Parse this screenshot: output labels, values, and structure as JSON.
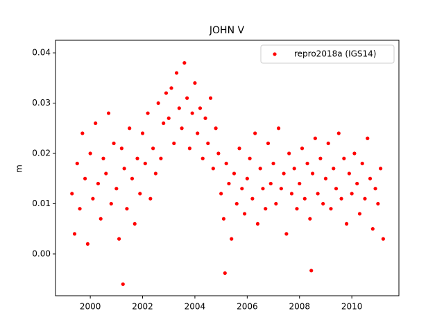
{
  "chart_data": {
    "type": "scatter",
    "title": "JOHN V",
    "ylabel": "m",
    "series": [
      {
        "name": "repro2018a (IGS14)",
        "color": "#ff0000",
        "x": [
          1999.3,
          1999.4,
          1999.5,
          1999.6,
          1999.7,
          1999.8,
          1999.9,
          2000.0,
          2000.1,
          2000.2,
          2000.3,
          2000.4,
          2000.5,
          2000.6,
          2000.7,
          2000.8,
          2000.9,
          2001.0,
          2001.1,
          2001.2,
          2001.3,
          2001.4,
          2001.5,
          2001.6,
          2001.7,
          2001.8,
          2001.9,
          2002.0,
          2002.1,
          2002.2,
          2002.3,
          2002.4,
          2002.5,
          2002.6,
          2002.7,
          2002.8,
          2002.9,
          2003.0,
          2003.1,
          2003.2,
          2003.3,
          2003.4,
          2003.5,
          2003.6,
          2003.7,
          2003.8,
          2003.9,
          2004.0,
          2004.1,
          2004.2,
          2004.3,
          2004.4,
          2004.5,
          2004.6,
          2004.7,
          2004.8,
          2004.9,
          2005.0,
          2005.1,
          2005.2,
          2005.3,
          2005.4,
          2005.5,
          2005.6,
          2005.7,
          2005.8,
          2005.9,
          2006.0,
          2006.1,
          2006.2,
          2006.3,
          2006.4,
          2006.5,
          2006.6,
          2006.7,
          2006.8,
          2006.9,
          2007.0,
          2007.1,
          2007.2,
          2007.3,
          2007.4,
          2007.5,
          2007.6,
          2007.7,
          2007.8,
          2007.9,
          2008.0,
          2008.1,
          2008.2,
          2008.3,
          2008.4,
          2008.5,
          2008.6,
          2008.7,
          2008.8,
          2008.9,
          2009.0,
          2009.1,
          2009.2,
          2009.3,
          2009.4,
          2009.5,
          2009.6,
          2009.7,
          2009.8,
          2009.9,
          2010.0,
          2010.1,
          2010.2,
          2010.3,
          2010.4,
          2010.5,
          2010.6,
          2010.7,
          2010.8,
          2010.9,
          2011.0,
          2011.1,
          2011.2,
          2001.25,
          2005.15,
          2008.45
        ],
        "values": [
          0.012,
          0.004,
          0.018,
          0.009,
          0.024,
          0.015,
          0.002,
          0.02,
          0.011,
          0.026,
          0.014,
          0.007,
          0.019,
          0.016,
          0.028,
          0.01,
          0.022,
          0.013,
          0.003,
          0.021,
          0.017,
          0.009,
          0.025,
          0.015,
          0.006,
          0.019,
          0.012,
          0.024,
          0.018,
          0.028,
          0.011,
          0.021,
          0.016,
          0.03,
          0.019,
          0.026,
          0.032,
          0.027,
          0.033,
          0.022,
          0.036,
          0.029,
          0.025,
          0.038,
          0.031,
          0.021,
          0.028,
          0.034,
          0.024,
          0.029,
          0.019,
          0.027,
          0.022,
          0.031,
          0.017,
          0.025,
          0.02,
          0.012,
          0.007,
          0.018,
          0.014,
          0.003,
          0.016,
          0.01,
          0.021,
          0.013,
          0.008,
          0.015,
          0.019,
          0.011,
          0.024,
          0.006,
          0.017,
          0.013,
          0.009,
          0.022,
          0.014,
          0.018,
          0.01,
          0.025,
          0.013,
          0.016,
          0.004,
          0.02,
          0.012,
          0.017,
          0.009,
          0.014,
          0.021,
          0.011,
          0.018,
          0.007,
          0.016,
          0.023,
          0.012,
          0.019,
          0.01,
          0.015,
          0.022,
          0.009,
          0.017,
          0.013,
          0.024,
          0.011,
          0.019,
          0.006,
          0.016,
          0.012,
          0.02,
          0.014,
          0.008,
          0.018,
          0.011,
          0.023,
          0.015,
          0.005,
          0.013,
          0.01,
          0.017,
          0.003,
          -0.006,
          -0.0038,
          -0.0033
        ]
      }
    ],
    "xlim": [
      1998.67,
      2011.8
    ],
    "ylim": [
      -0.0083,
      0.0425
    ],
    "xticks": [
      2000,
      2002,
      2004,
      2006,
      2008,
      2010
    ],
    "yticks": [
      {
        "value": 0,
        "label": "0.00"
      },
      0.01,
      0.02,
      0.03,
      0.04
    ],
    "legend": "upper right"
  }
}
